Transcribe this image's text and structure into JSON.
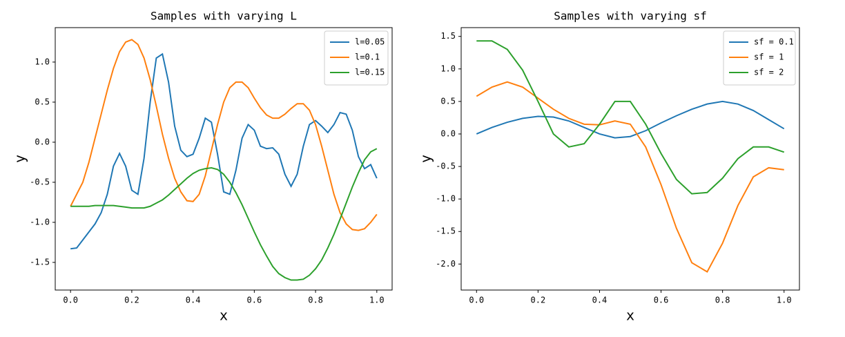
{
  "chart_data": [
    {
      "type": "line",
      "title": "Samples with varying L",
      "xlabel": "x",
      "ylabel": "y",
      "legend": "upper right",
      "x": [
        0,
        0.02,
        0.04,
        0.06,
        0.08,
        0.1,
        0.12,
        0.14,
        0.16,
        0.18,
        0.2,
        0.22,
        0.24,
        0.26,
        0.28,
        0.3,
        0.32,
        0.34,
        0.36,
        0.38,
        0.4,
        0.42,
        0.44,
        0.46,
        0.48,
        0.5,
        0.52,
        0.54,
        0.56,
        0.58,
        0.6,
        0.62,
        0.64,
        0.66,
        0.68,
        0.7,
        0.72,
        0.74,
        0.76,
        0.78,
        0.8,
        0.82,
        0.84,
        0.86,
        0.88,
        0.9,
        0.92,
        0.94,
        0.96,
        0.98,
        1.0
      ],
      "xlim": [
        -0.05,
        1.05
      ],
      "xticks": [
        {
          "value": 0,
          "label": "0.0"
        },
        0.2,
        0.4,
        0.6,
        0.8,
        {
          "value": 1,
          "label": "1.0"
        }
      ],
      "ylim": [
        -1.845,
        1.43
      ],
      "yticks": [
        -1.5,
        {
          "value": -1,
          "label": "-1.0"
        },
        -0.5,
        {
          "value": 0,
          "label": "0.0"
        },
        0.5,
        {
          "value": 1,
          "label": "1.0"
        }
      ],
      "series": [
        {
          "name": "l=0.05",
          "color": "#1f77b4",
          "values": [
            -1.33,
            -1.32,
            -1.22,
            -1.12,
            -1.02,
            -0.88,
            -0.65,
            -0.3,
            -0.14,
            -0.3,
            -0.6,
            -0.65,
            -0.2,
            0.5,
            1.05,
            1.1,
            0.75,
            0.2,
            -0.1,
            -0.18,
            -0.15,
            0.05,
            0.3,
            0.25,
            -0.15,
            -0.62,
            -0.65,
            -0.35,
            0.05,
            0.22,
            0.15,
            -0.05,
            -0.08,
            -0.07,
            -0.15,
            -0.4,
            -0.55,
            -0.4,
            -0.05,
            0.22,
            0.27,
            0.2,
            0.12,
            0.22,
            0.37,
            0.35,
            0.15,
            -0.18,
            -0.33,
            -0.28,
            -0.45
          ]
        },
        {
          "name": "l=0.1",
          "color": "#ff7f0e",
          "values": [
            -0.8,
            -0.65,
            -0.5,
            -0.25,
            0.05,
            0.35,
            0.65,
            0.92,
            1.13,
            1.25,
            1.28,
            1.22,
            1.05,
            0.78,
            0.45,
            0.1,
            -0.2,
            -0.45,
            -0.62,
            -0.73,
            -0.74,
            -0.65,
            -0.42,
            -0.1,
            0.22,
            0.5,
            0.68,
            0.75,
            0.75,
            0.68,
            0.55,
            0.43,
            0.34,
            0.3,
            0.3,
            0.35,
            0.42,
            0.48,
            0.48,
            0.4,
            0.22,
            -0.05,
            -0.35,
            -0.65,
            -0.88,
            -1.02,
            -1.09,
            -1.1,
            -1.08,
            -1.0,
            -0.9
          ]
        },
        {
          "name": "l=0.15",
          "color": "#2ca02c",
          "values": [
            -0.8,
            -0.8,
            -0.8,
            -0.8,
            -0.79,
            -0.79,
            -0.79,
            -0.79,
            -0.8,
            -0.81,
            -0.82,
            -0.82,
            -0.82,
            -0.8,
            -0.76,
            -0.72,
            -0.66,
            -0.59,
            -0.52,
            -0.45,
            -0.39,
            -0.35,
            -0.33,
            -0.32,
            -0.34,
            -0.4,
            -0.5,
            -0.63,
            -0.78,
            -0.95,
            -1.12,
            -1.28,
            -1.42,
            -1.55,
            -1.64,
            -1.69,
            -1.72,
            -1.72,
            -1.71,
            -1.66,
            -1.58,
            -1.47,
            -1.32,
            -1.15,
            -0.96,
            -0.76,
            -0.56,
            -0.38,
            -0.22,
            -0.12,
            -0.08
          ]
        }
      ]
    },
    {
      "type": "line",
      "title": "Samples with varying sf",
      "xlabel": "x",
      "ylabel": "y",
      "legend": "upper right",
      "x": [
        0,
        0.05,
        0.1,
        0.15,
        0.2,
        0.25,
        0.3,
        0.35,
        0.4,
        0.45,
        0.5,
        0.55,
        0.6,
        0.65,
        0.7,
        0.75,
        0.8,
        0.85,
        0.9,
        0.95,
        1.0
      ],
      "xlim": [
        -0.05,
        1.05
      ],
      "xticks": [
        {
          "value": 0,
          "label": "0.0"
        },
        0.2,
        0.4,
        0.6,
        0.8,
        {
          "value": 1,
          "label": "1.0"
        }
      ],
      "ylim": [
        -2.4,
        1.635
      ],
      "yticks": [
        {
          "value": -2,
          "label": "-2.0"
        },
        -1.5,
        {
          "value": -1,
          "label": "-1.0"
        },
        -0.5,
        {
          "value": 0,
          "label": "0.0"
        },
        0.5,
        {
          "value": 1,
          "label": "1.0"
        },
        1.5
      ],
      "series": [
        {
          "name": "sf = 0.1",
          "color": "#1f77b4",
          "values": [
            0,
            0.1,
            0.18,
            0.24,
            0.27,
            0.26,
            0.2,
            0.1,
            0.0,
            -0.06,
            -0.04,
            0.05,
            0.17,
            0.28,
            0.38,
            0.46,
            0.5,
            0.46,
            0.36,
            0.22,
            0.08
          ]
        },
        {
          "name": "sf = 1",
          "color": "#ff7f0e",
          "values": [
            0.58,
            0.72,
            0.8,
            0.72,
            0.55,
            0.38,
            0.24,
            0.15,
            0.14,
            0.2,
            0.15,
            -0.2,
            -0.78,
            -1.45,
            -1.98,
            -2.12,
            -1.68,
            -1.1,
            -0.66,
            -0.52,
            -0.55
          ]
        },
        {
          "name": "sf = 2",
          "color": "#2ca02c",
          "values": [
            1.43,
            1.43,
            1.3,
            0.98,
            0.5,
            0.0,
            -0.2,
            -0.15,
            0.15,
            0.5,
            0.5,
            0.15,
            -0.3,
            -0.7,
            -0.92,
            -0.9,
            -0.68,
            -0.38,
            -0.2,
            -0.2,
            -0.28
          ]
        }
      ]
    }
  ]
}
